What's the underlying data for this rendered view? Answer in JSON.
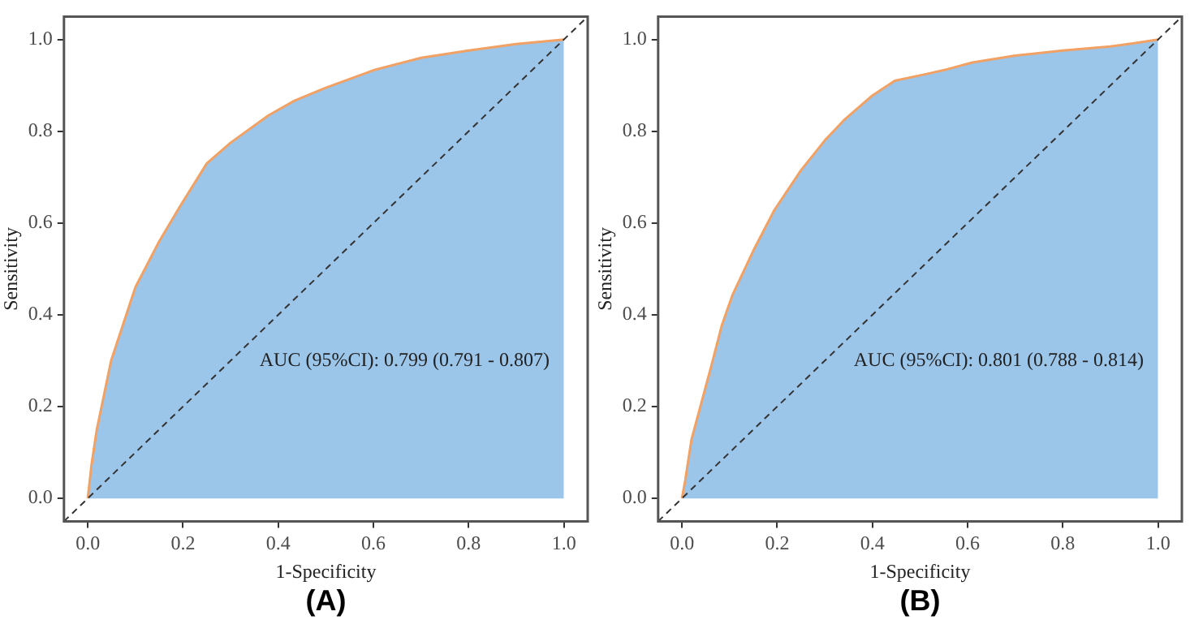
{
  "chart_data": [
    {
      "type": "area",
      "xlabel": "1-Specificity",
      "ylabel": "Sensitivity",
      "annotations": [
        "AUC (95%CI): 0.799 (0.791 - 0.807)",
        "(A)"
      ],
      "xlim": [
        -0.05,
        1.05
      ],
      "ylim": [
        -0.05,
        1.05
      ],
      "xticks": [
        {
          "value": 0,
          "label": "0.0"
        },
        {
          "value": 0.2,
          "label": "0.2"
        },
        {
          "value": 0.4,
          "label": "0.4"
        },
        {
          "value": 0.6,
          "label": "0.6"
        },
        {
          "value": 0.8,
          "label": "0.8"
        },
        {
          "value": 1,
          "label": "1.0"
        }
      ],
      "yticks": [
        {
          "value": 0,
          "label": "0.0"
        },
        {
          "value": 0.2,
          "label": "0.2"
        },
        {
          "value": 0.4,
          "label": "0.4"
        },
        {
          "value": 0.6,
          "label": "0.6"
        },
        {
          "value": 0.8,
          "label": "0.8"
        },
        {
          "value": 1,
          "label": "1.0"
        }
      ],
      "grid": false,
      "legend": false,
      "series": [
        {
          "color": "#9cc5ea",
          "x": [
            0,
            0.008,
            0.019,
            0.049,
            0.1,
            0.15,
            0.19,
            0.25,
            0.3,
            0.38,
            0.435,
            0.5,
            0.6,
            0.7,
            0.8,
            0.9,
            1
          ],
          "values": [
            0,
            0.074,
            0.15,
            0.3,
            0.46,
            0.56,
            0.63,
            0.73,
            0.775,
            0.835,
            0.867,
            0.895,
            0.933,
            0.96,
            0.976,
            0.99,
            1
          ]
        },
        {
          "type": "line",
          "color": "#333333",
          "line_style": "dashed",
          "x": [
            -0.05,
            1.05
          ],
          "values": [
            -0.05,
            1.05
          ]
        }
      ]
    },
    {
      "type": "area",
      "xlabel": "1-Specificity",
      "ylabel": "Sensitivity",
      "annotations": [
        "AUC (95%CI): 0.801 (0.788 - 0.814)",
        "(B)"
      ],
      "xlim": [
        -0.05,
        1.05
      ],
      "ylim": [
        -0.05,
        1.05
      ],
      "xticks": [
        {
          "value": 0,
          "label": "0.0"
        },
        {
          "value": 0.2,
          "label": "0.2"
        },
        {
          "value": 0.4,
          "label": "0.4"
        },
        {
          "value": 0.6,
          "label": "0.6"
        },
        {
          "value": 0.8,
          "label": "0.8"
        },
        {
          "value": 1,
          "label": "1.0"
        }
      ],
      "yticks": [
        {
          "value": 0,
          "label": "0.0"
        },
        {
          "value": 0.2,
          "label": "0.2"
        },
        {
          "value": 0.4,
          "label": "0.4"
        },
        {
          "value": 0.6,
          "label": "0.6"
        },
        {
          "value": 0.8,
          "label": "0.8"
        },
        {
          "value": 1,
          "label": "1.0"
        }
      ],
      "grid": false,
      "legend": false,
      "series": [
        {
          "color": "#9cc5ea",
          "x": [
            0,
            0.007,
            0.02,
            0.062,
            0.084,
            0.106,
            0.15,
            0.194,
            0.25,
            0.3,
            0.34,
            0.4,
            0.447,
            0.51,
            0.557,
            0.61,
            0.7,
            0.8,
            0.9,
            0.95,
            1
          ],
          "values": [
            0,
            0.04,
            0.128,
            0.29,
            0.378,
            0.443,
            0.54,
            0.628,
            0.715,
            0.78,
            0.824,
            0.878,
            0.91,
            0.924,
            0.935,
            0.95,
            0.965,
            0.976,
            0.985,
            0.992,
            1
          ]
        },
        {
          "type": "line",
          "color": "#333333",
          "line_style": "dashed",
          "x": [
            -0.05,
            1.05
          ],
          "values": [
            -0.05,
            1.05
          ]
        }
      ]
    }
  ]
}
